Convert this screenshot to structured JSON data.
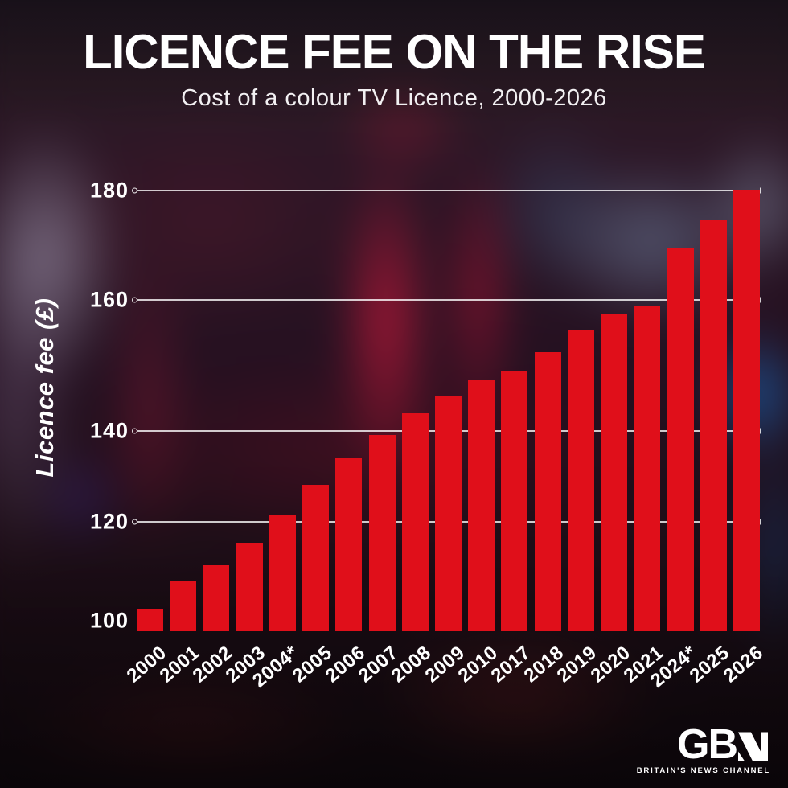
{
  "header": {
    "title": "LICENCE FEE ON THE RISE",
    "subtitle": "Cost of a colour TV Licence, 2000-2026"
  },
  "chart_data": {
    "type": "bar",
    "title": "LICENCE FEE ON THE RISE",
    "subtitle": "Cost of a colour TV Licence, 2000-2026",
    "xlabel": "",
    "ylabel": "Licence fee (£)",
    "categories": [
      "2000",
      "2001",
      "2002",
      "2003",
      "2004*",
      "2005",
      "2006",
      "2007",
      "2008",
      "2009",
      "2010",
      "2017",
      "2018",
      "2019",
      "2020",
      "2021",
      "2024*",
      "2025",
      "2026"
    ],
    "values": [
      104,
      109,
      112,
      116,
      121,
      126.5,
      131.5,
      135.5,
      139.5,
      142.5,
      145.5,
      147,
      150.5,
      154.5,
      157.5,
      159,
      169.5,
      174.5,
      180
    ],
    "yticks": [
      100,
      120,
      140,
      160,
      180
    ],
    "ylim": [
      100,
      185
    ],
    "grid": true,
    "legend": "none",
    "bar_color": "#e00f1a",
    "gridline_color": "#ffffff",
    "text_color": "#ffffff"
  },
  "footer": {
    "logo_gb": "GB",
    "logo_n_icon": "gbn-stylised-n",
    "tagline": "BRITAIN'S NEWS CHANNEL"
  }
}
